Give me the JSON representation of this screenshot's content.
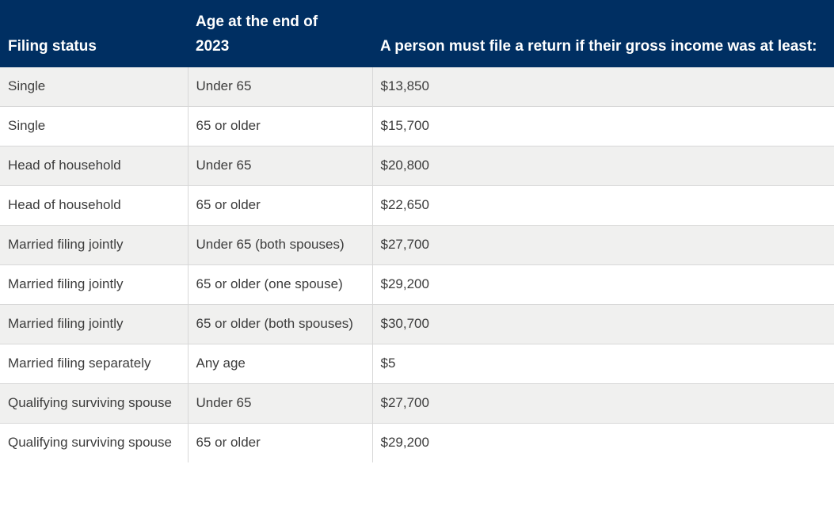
{
  "chart_data": {
    "type": "table",
    "columns": [
      "Filing status",
      "Age at the end of 2023",
      "A person must file a return if their gross income was at least:"
    ],
    "rows": [
      [
        "Single",
        "Under 65",
        "$13,850"
      ],
      [
        "Single",
        "65 or older",
        "$15,700"
      ],
      [
        "Head of household",
        "Under 65",
        "$20,800"
      ],
      [
        "Head of household",
        "65 or older",
        "$22,650"
      ],
      [
        "Married filing jointly",
        "Under 65 (both spouses)",
        "$27,700"
      ],
      [
        "Married filing jointly",
        "65 or older (one spouse)",
        "$29,200"
      ],
      [
        "Married filing jointly",
        "65 or older (both spouses)",
        "$30,700"
      ],
      [
        "Married filing separately",
        "Any age",
        "$5"
      ],
      [
        "Qualifying surviving spouse",
        "Under 65",
        "$27,700"
      ],
      [
        "Qualifying surviving spouse",
        "65 or older",
        "$29,200"
      ]
    ]
  },
  "colors": {
    "header_bg": "#002f62",
    "header_text": "#ffffff",
    "row_alt_bg": "#f0f0ef",
    "row_bg": "#ffffff",
    "border": "#d8d8d8",
    "body_text": "#3c3c3c"
  }
}
